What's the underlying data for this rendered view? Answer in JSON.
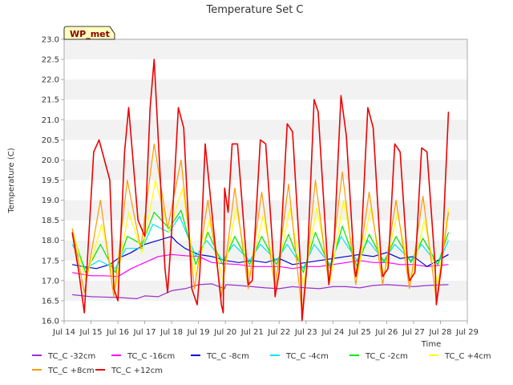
{
  "chart_data": {
    "type": "line",
    "title": "Temperature Set C",
    "ylabel": "Temperature (C)",
    "xlabel": "Time",
    "site_label": "WP_met",
    "xlim": [
      14,
      29
    ],
    "ylim": [
      16.0,
      23.0
    ],
    "x_ticks": [
      {
        "v": 14,
        "label": "Jul 14"
      },
      {
        "v": 15,
        "label": "Jul 15"
      },
      {
        "v": 16,
        "label": "Jul 16"
      },
      {
        "v": 17,
        "label": "Jul 17"
      },
      {
        "v": 18,
        "label": "Jul 18"
      },
      {
        "v": 19,
        "label": "Jul 19"
      },
      {
        "v": 20,
        "label": "Jul 20"
      },
      {
        "v": 21,
        "label": "Jul 21"
      },
      {
        "v": 22,
        "label": "Jul 22"
      },
      {
        "v": 23,
        "label": "Jul 23"
      },
      {
        "v": 24,
        "label": "Jul 24"
      },
      {
        "v": 25,
        "label": "Jul 25"
      },
      {
        "v": 26,
        "label": "Jul 26"
      },
      {
        "v": 27,
        "label": "Jul 27"
      },
      {
        "v": 28,
        "label": "Jul 28"
      },
      {
        "v": 29,
        "label": "Jul 29"
      }
    ],
    "y_ticks": [
      "16.0",
      "16.5",
      "17.0",
      "17.5",
      "18.0",
      "18.5",
      "19.0",
      "19.5",
      "20.0",
      "20.5",
      "21.0",
      "21.5",
      "22.0",
      "22.5",
      "23.0"
    ],
    "grid": "horizontal bands",
    "legend_position": "bottom",
    "series": [
      {
        "name": "TC_C -32cm",
        "color": "#9932cc",
        "x": [
          14.3,
          15,
          16,
          16.7,
          17,
          17.5,
          18,
          18.5,
          19,
          19.5,
          19.97,
          20.02,
          20.5,
          21,
          21.5,
          22,
          22.5,
          23,
          23.5,
          24,
          24.5,
          25,
          25.5,
          26,
          26.5,
          27,
          27.5,
          28.3
        ],
        "y": [
          16.65,
          16.6,
          16.58,
          16.55,
          16.62,
          16.6,
          16.75,
          16.8,
          16.9,
          16.92,
          16.8,
          16.9,
          16.88,
          16.85,
          16.82,
          16.8,
          16.85,
          16.82,
          16.8,
          16.85,
          16.85,
          16.82,
          16.88,
          16.9,
          16.88,
          16.85,
          16.88,
          16.9
        ]
      },
      {
        "name": "TC_C -16cm",
        "color": "#ff00ff",
        "x": [
          14.3,
          15,
          15.5,
          16,
          16.5,
          17,
          17.5,
          18,
          18.5,
          19,
          19.5,
          20,
          20.5,
          21,
          21.5,
          22,
          22.5,
          23,
          23.5,
          24,
          24.5,
          25,
          25.5,
          26,
          26.5,
          27,
          27.5,
          28.3
        ],
        "y": [
          17.2,
          17.12,
          17.12,
          17.1,
          17.3,
          17.45,
          17.6,
          17.65,
          17.62,
          17.6,
          17.45,
          17.42,
          17.4,
          17.35,
          17.35,
          17.35,
          17.3,
          17.35,
          17.35,
          17.4,
          17.45,
          17.5,
          17.45,
          17.45,
          17.4,
          17.4,
          17.35,
          17.4
        ]
      },
      {
        "name": "TC_C -8cm",
        "color": "#0000cd",
        "x": [
          14.3,
          14.7,
          15.2,
          15.7,
          16,
          16.5,
          17,
          17.5,
          18,
          18.2,
          18.5,
          19,
          19.5,
          20,
          20.5,
          21,
          21.5,
          22,
          22.5,
          23,
          23.5,
          24,
          24.5,
          25,
          25.5,
          26,
          26.5,
          27,
          27.5,
          28.3
        ],
        "y": [
          17.4,
          17.35,
          17.3,
          17.4,
          17.55,
          17.7,
          17.9,
          18.0,
          18.1,
          17.95,
          17.8,
          17.65,
          17.6,
          17.5,
          17.45,
          17.5,
          17.45,
          17.55,
          17.4,
          17.45,
          17.5,
          17.55,
          17.6,
          17.65,
          17.6,
          17.7,
          17.55,
          17.6,
          17.35,
          17.65
        ]
      },
      {
        "name": "TC_C -4cm",
        "color": "#00e5ee",
        "x": [
          14.3,
          14.8,
          15.3,
          15.9,
          16.3,
          16.9,
          17.3,
          17.9,
          18.3,
          18.9,
          19.3,
          19.9,
          20.3,
          20.9,
          21.3,
          21.9,
          22.3,
          22.9,
          23.3,
          23.9,
          24.3,
          24.9,
          25.3,
          25.9,
          26.3,
          26.9,
          27.3,
          27.9,
          28.3
        ],
        "y": [
          17.9,
          17.3,
          17.5,
          17.3,
          17.8,
          17.8,
          18.4,
          18.2,
          18.6,
          17.6,
          18.0,
          17.5,
          17.9,
          17.5,
          17.9,
          17.5,
          17.9,
          17.3,
          17.9,
          17.4,
          18.1,
          17.5,
          18.0,
          17.5,
          17.9,
          17.5,
          17.9,
          17.4,
          18.0
        ]
      },
      {
        "name": "TC_C -2cm",
        "color": "#00e600",
        "x": [
          14.3,
          14.8,
          15.35,
          15.9,
          16.35,
          16.9,
          17.35,
          17.9,
          18.35,
          18.9,
          19.35,
          19.9,
          20.35,
          20.9,
          21.35,
          21.9,
          22.35,
          22.9,
          23.35,
          23.9,
          24.35,
          24.9,
          25.35,
          25.9,
          26.35,
          26.9,
          27.35,
          27.9,
          28.3
        ],
        "y": [
          18.2,
          17.2,
          17.9,
          17.2,
          18.1,
          17.9,
          18.7,
          18.3,
          18.75,
          17.4,
          18.2,
          17.4,
          18.1,
          17.4,
          18.1,
          17.4,
          18.15,
          17.2,
          18.2,
          17.3,
          18.35,
          17.35,
          18.15,
          17.45,
          18.1,
          17.45,
          18.05,
          17.4,
          18.2
        ]
      },
      {
        "name": "TC_C +4cm",
        "color": "#ffff00",
        "x": [
          14.3,
          14.8,
          15.4,
          15.9,
          16.4,
          16.9,
          17.4,
          17.9,
          18.4,
          18.9,
          19.4,
          19.9,
          20.4,
          20.9,
          21.4,
          21.9,
          22.4,
          22.9,
          23.4,
          23.9,
          24.4,
          24.9,
          25.4,
          25.9,
          26.4,
          26.9,
          27.4,
          27.9,
          28.3
        ],
        "y": [
          18.3,
          17.0,
          18.4,
          16.8,
          18.7,
          17.7,
          19.5,
          18.2,
          19.3,
          17.1,
          18.5,
          17.0,
          18.8,
          17.1,
          18.6,
          17.1,
          18.8,
          16.9,
          18.8,
          17.0,
          19.0,
          17.1,
          18.8,
          17.1,
          18.7,
          17.0,
          18.5,
          16.9,
          18.8
        ]
      },
      {
        "name": "TC_C +8cm",
        "color": "#ff9900",
        "x": [
          14.3,
          14.75,
          15.35,
          15.85,
          16.35,
          16.85,
          17.35,
          17.85,
          18.35,
          18.85,
          19.35,
          19.85,
          20.35,
          20.85,
          21.35,
          21.85,
          22.35,
          22.85,
          23.35,
          23.85,
          24.35,
          24.85,
          25.35,
          25.85,
          26.35,
          26.85,
          27.35,
          27.85,
          28.3
        ],
        "y": [
          18.3,
          16.7,
          19.0,
          16.6,
          19.5,
          17.8,
          20.4,
          18.3,
          20.0,
          16.8,
          19.0,
          16.6,
          19.3,
          16.8,
          19.2,
          16.8,
          19.4,
          16.2,
          19.5,
          16.9,
          19.7,
          16.9,
          19.2,
          16.9,
          19.0,
          16.8,
          19.1,
          16.5,
          18.7
        ]
      },
      {
        "name": "TC_C +12cm",
        "color": "#ee0000",
        "x": [
          14.3,
          14.55,
          14.75,
          15.1,
          15.3,
          15.7,
          15.85,
          16.0,
          16.25,
          16.4,
          16.75,
          17.0,
          17.2,
          17.35,
          17.75,
          17.85,
          18.0,
          18.25,
          18.45,
          18.75,
          18.95,
          19.05,
          19.25,
          19.6,
          19.85,
          19.92,
          19.97,
          20.1,
          20.25,
          20.45,
          20.75,
          20.85,
          21.0,
          21.3,
          21.5,
          21.8,
          21.85,
          22.0,
          22.3,
          22.5,
          22.8,
          22.85,
          23.05,
          23.3,
          23.45,
          23.85,
          24.05,
          24.3,
          24.5,
          24.8,
          24.85,
          25.05,
          25.3,
          25.5,
          25.8,
          25.85,
          26.05,
          26.3,
          26.5,
          26.8,
          26.85,
          27.05,
          27.3,
          27.5,
          27.8,
          27.85,
          28.05,
          28.3
        ],
        "y": [
          18.2,
          17.2,
          16.2,
          20.2,
          20.5,
          19.5,
          16.8,
          16.5,
          20.2,
          21.3,
          18.5,
          18.1,
          21.3,
          22.5,
          17.3,
          16.7,
          18.2,
          21.3,
          20.8,
          16.8,
          16.4,
          17.2,
          20.4,
          18.0,
          16.4,
          16.2,
          19.3,
          18.7,
          20.4,
          20.4,
          17.8,
          16.9,
          17.0,
          20.5,
          20.4,
          17.4,
          16.6,
          17.2,
          20.9,
          20.7,
          17.3,
          16.0,
          17.5,
          21.5,
          21.2,
          16.9,
          18.0,
          21.6,
          20.6,
          17.3,
          17.1,
          17.9,
          21.3,
          20.8,
          17.4,
          17.1,
          17.3,
          20.4,
          20.2,
          17.2,
          17.0,
          17.2,
          20.3,
          20.2,
          17.4,
          16.4,
          17.4,
          21.2
        ]
      }
    ]
  }
}
